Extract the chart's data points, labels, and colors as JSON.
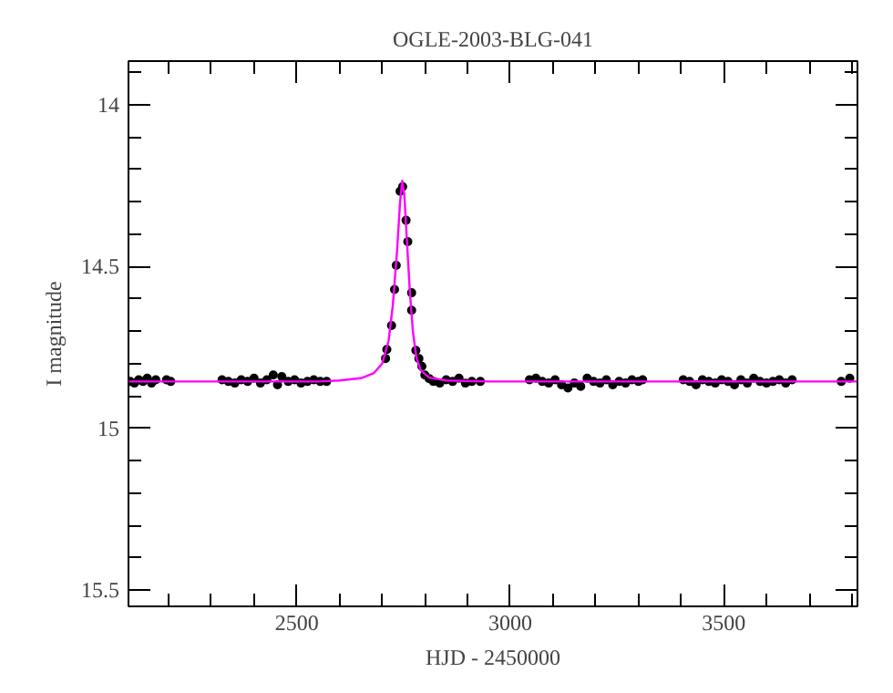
{
  "chart_data": {
    "type": "scatter",
    "title": "OGLE-2003-BLG-041",
    "xlabel": "HJD - 2450000",
    "ylabel": "I magnitude",
    "xlim": [
      2106,
      3813
    ],
    "ylim": [
      15.55,
      13.865
    ],
    "xticks": [
      {
        "value": 2200,
        "label": null
      },
      {
        "value": 2300,
        "label": null
      },
      {
        "value": 2400,
        "label": null
      },
      2500,
      {
        "value": 2600,
        "label": null
      },
      {
        "value": 2700,
        "label": null
      },
      {
        "value": 2800,
        "label": null
      },
      {
        "value": 2900,
        "label": null
      },
      3000,
      {
        "value": 3100,
        "label": null
      },
      {
        "value": 3200,
        "label": null
      },
      {
        "value": 3300,
        "label": null
      },
      {
        "value": 3400,
        "label": null
      },
      3500,
      {
        "value": 3600,
        "label": null
      },
      {
        "value": 3700,
        "label": null
      },
      {
        "value": 3800,
        "label": null
      }
    ],
    "yticks": [
      {
        "value": 13.9,
        "label": null
      },
      14,
      {
        "value": 14.1,
        "label": null
      },
      {
        "value": 14.2,
        "label": null
      },
      {
        "value": 14.3,
        "label": null
      },
      {
        "value": 14.4,
        "label": null
      },
      14.5,
      {
        "value": 14.6,
        "label": null
      },
      {
        "value": 14.7,
        "label": null
      },
      {
        "value": 14.8,
        "label": null
      },
      {
        "value": 14.9,
        "label": null
      },
      15,
      {
        "value": 15.1,
        "label": null
      },
      {
        "value": 15.2,
        "label": null
      },
      {
        "value": 15.3,
        "label": null
      },
      {
        "value": 15.4,
        "label": null
      },
      15.5
    ],
    "grid": false,
    "series": [
      {
        "marker": "circle",
        "color": "#000000",
        "x": [
          2110,
          2120,
          2130,
          2140,
          2150,
          2160,
          2170,
          2195,
          2205,
          2325,
          2340,
          2355,
          2370,
          2385,
          2400,
          2415,
          2430,
          2445,
          2455,
          2465,
          2480,
          2495,
          2510,
          2525,
          2540,
          2555,
          2570,
          2708,
          2711,
          2722,
          2729,
          2733,
          2742,
          2748,
          2756,
          2760,
          2769,
          2769,
          2779,
          2786,
          2793,
          2800,
          2810,
          2820,
          2835,
          2850,
          2865,
          2880,
          2895,
          2910,
          2930,
          3045,
          3060,
          3075,
          3090,
          3105,
          3120,
          3135,
          3150,
          3165,
          3180,
          3195,
          3210,
          3225,
          3240,
          3255,
          3270,
          3285,
          3300,
          3310,
          3405,
          3420,
          3435,
          3450,
          3465,
          3480,
          3495,
          3510,
          3525,
          3540,
          3555,
          3570,
          3585,
          3600,
          3615,
          3630,
          3645,
          3660,
          3775,
          3795
        ],
        "values": [
          14.855,
          14.86,
          14.85,
          14.855,
          14.845,
          14.86,
          14.85,
          14.85,
          14.855,
          14.85,
          14.855,
          14.86,
          14.85,
          14.855,
          14.845,
          14.86,
          14.85,
          14.835,
          14.865,
          14.84,
          14.855,
          14.85,
          14.86,
          14.855,
          14.85,
          14.855,
          14.855,
          14.784,
          14.756,
          14.682,
          14.571,
          14.496,
          14.267,
          14.253,
          14.357,
          14.423,
          14.581,
          14.635,
          14.759,
          14.784,
          14.808,
          14.835,
          14.846,
          14.855,
          14.86,
          14.85,
          14.855,
          14.845,
          14.86,
          14.855,
          14.855,
          14.85,
          14.845,
          14.855,
          14.86,
          14.85,
          14.865,
          14.875,
          14.86,
          14.87,
          14.845,
          14.855,
          14.86,
          14.85,
          14.865,
          14.855,
          14.86,
          14.85,
          14.855,
          14.85,
          14.85,
          14.855,
          14.865,
          14.85,
          14.855,
          14.86,
          14.85,
          14.855,
          14.865,
          14.85,
          14.86,
          14.845,
          14.855,
          14.86,
          14.855,
          14.85,
          14.86,
          14.85,
          14.855,
          14.845
        ]
      },
      {
        "type": "line",
        "color": "#ff00ff",
        "line_style": "solid",
        "x": [
          2106,
          2550,
          2600,
          2650,
          2680,
          2700,
          2715,
          2725,
          2735,
          2742,
          2747,
          2752,
          2758,
          2765,
          2772,
          2780,
          2790,
          2810,
          2850,
          2950,
          3813
        ],
        "values": [
          14.855,
          14.855,
          14.852,
          14.845,
          14.83,
          14.8,
          14.73,
          14.62,
          14.45,
          14.3,
          14.235,
          14.28,
          14.42,
          14.58,
          14.7,
          14.78,
          14.82,
          14.843,
          14.852,
          14.855,
          14.855
        ]
      }
    ]
  }
}
